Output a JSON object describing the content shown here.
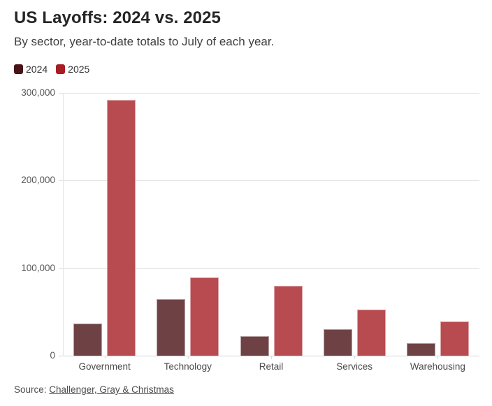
{
  "header": {
    "title": "US Layoffs: 2024 vs. 2025",
    "subtitle": "By sector, year-to-date totals to July of each year."
  },
  "legend": [
    {
      "label": "2024",
      "color": "#4a1316"
    },
    {
      "label": "2025",
      "color": "#a61e23"
    }
  ],
  "source": {
    "prefix": "Source:",
    "link_text": "Challenger, Gray & Christmas"
  },
  "chart_data": {
    "type": "bar",
    "title": "US Layoffs: 2024 vs. 2025",
    "subtitle": "By sector, year-to-date totals to July of each year.",
    "categories": [
      "Government",
      "Technology",
      "Retail",
      "Services",
      "Warehousing"
    ],
    "series": [
      {
        "name": "2024",
        "color": "#4a1316",
        "bar_color": "#6e4245",
        "values": [
          37000,
          65000,
          22000,
          30000,
          14000
        ]
      },
      {
        "name": "2025",
        "color": "#a61e23",
        "bar_color": "#b84b4f",
        "values": [
          292000,
          89000,
          80000,
          53000,
          39000
        ]
      }
    ],
    "xlabel": "",
    "ylabel": "",
    "ylim": [
      0,
      300000
    ],
    "yticks": [
      0,
      100000,
      200000,
      300000
    ],
    "ytick_labels": [
      "0",
      "100,000",
      "200,000",
      "300,000"
    ],
    "grid": true,
    "legend_position": "top-left"
  }
}
